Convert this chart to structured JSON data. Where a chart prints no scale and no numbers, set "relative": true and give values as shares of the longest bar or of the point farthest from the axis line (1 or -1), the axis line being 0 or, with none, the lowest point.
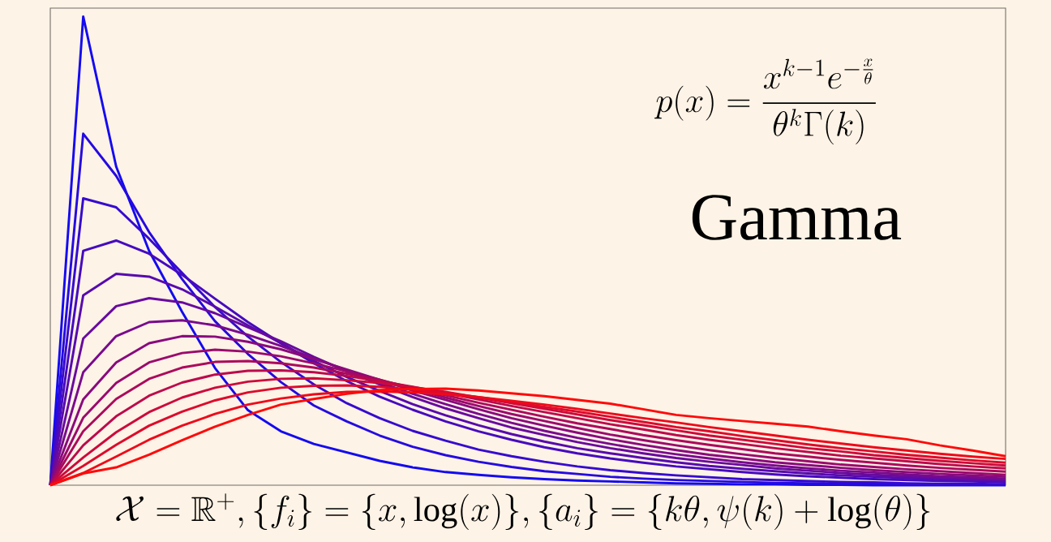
{
  "chart_data": {
    "type": "line",
    "title": "Gamma",
    "xlabel": "\\mathcal{X} = \\mathbb{R}^{+}, \\{f_i\\} = \\{x, \\log(x)\\}, \\{a_i\\} = \\{k\\theta, \\psi(k) + \\log(\\theta)\\}",
    "annotations": [
      "p(x) = \\frac{x^{k-1}e^{-\\frac{x}{\\theta}}}{\\theta^{k}\\Gamma(k)}"
    ],
    "relative": true,
    "marker": "none",
    "line_style": "solid",
    "categories": [
      null,
      null,
      null,
      null,
      null,
      null,
      null,
      null,
      null,
      null,
      null,
      null,
      null,
      null,
      null,
      null,
      null,
      null,
      null,
      null,
      null,
      null,
      null,
      null,
      null,
      null,
      null,
      null,
      null,
      null
    ],
    "series": [
      {
        "color": "#140af0",
        "values": [
          0,
          1,
          0.68,
          0.5,
          0.37,
          0.25,
          0.16,
          0.115,
          0.088,
          0.07,
          0.052,
          0.038,
          0.028,
          0.022,
          0.017,
          0.013,
          0.01,
          0.008,
          0.006,
          0.004,
          0.003,
          0.002,
          0.002,
          0.001,
          0.001,
          0,
          0,
          0,
          0,
          0
        ]
      },
      {
        "color": "#250ae0",
        "values": [
          0,
          0.75,
          0.66,
          0.54,
          0.44,
          0.35,
          0.28,
          0.22,
          0.17,
          0.136,
          0.106,
          0.082,
          0.064,
          0.05,
          0.039,
          0.03,
          0.024,
          0.018,
          0.014,
          0.011,
          0.009,
          0.007,
          0.005,
          0.004,
          0.003,
          0.003,
          0.002,
          0.002,
          0.001,
          0.001
        ]
      },
      {
        "color": "#360acf",
        "values": [
          0,
          0.612,
          0.593,
          0.526,
          0.453,
          0.38,
          0.317,
          0.263,
          0.215,
          0.175,
          0.143,
          0.116,
          0.095,
          0.076,
          0.062,
          0.05,
          0.04,
          0.032,
          0.026,
          0.021,
          0.017,
          0.013,
          0.011,
          0.009,
          0.007,
          0.006,
          0.004,
          0.003,
          0.003,
          0.002
        ]
      },
      {
        "color": "#460abf",
        "values": [
          0,
          0.5,
          0.522,
          0.494,
          0.449,
          0.398,
          0.348,
          0.303,
          0.26,
          0.222,
          0.189,
          0.161,
          0.136,
          0.115,
          0.097,
          0.081,
          0.068,
          0.057,
          0.048,
          0.04,
          0.034,
          0.028,
          0.023,
          0.019,
          0.016,
          0.013,
          0.011,
          0.009,
          0.008,
          0.006
        ]
      },
      {
        "color": "#570aae",
        "values": [
          0,
          0.405,
          0.451,
          0.445,
          0.418,
          0.381,
          0.341,
          0.303,
          0.265,
          0.231,
          0.201,
          0.173,
          0.149,
          0.128,
          0.109,
          0.093,
          0.079,
          0.068,
          0.058,
          0.049,
          0.041,
          0.035,
          0.03,
          0.025,
          0.021,
          0.018,
          0.015,
          0.013,
          0.011,
          0.009
        ]
      },
      {
        "color": "#680a9e",
        "values": [
          0,
          0.313,
          0.382,
          0.399,
          0.39,
          0.367,
          0.337,
          0.307,
          0.274,
          0.243,
          0.215,
          0.188,
          0.164,
          0.143,
          0.123,
          0.107,
          0.092,
          0.079,
          0.068,
          0.058,
          0.05,
          0.043,
          0.036,
          0.031,
          0.026,
          0.022,
          0.019,
          0.016,
          0.014,
          0.012
        ]
      },
      {
        "color": "#790a8d",
        "values": [
          0,
          0.241,
          0.318,
          0.348,
          0.352,
          0.341,
          0.321,
          0.297,
          0.271,
          0.245,
          0.219,
          0.195,
          0.173,
          0.152,
          0.133,
          0.116,
          0.101,
          0.088,
          0.076,
          0.066,
          0.057,
          0.049,
          0.042,
          0.036,
          0.031,
          0.027,
          0.023,
          0.019,
          0.017,
          0.014
        ]
      },
      {
        "color": "#890a7d",
        "values": [
          0,
          0.183,
          0.262,
          0.303,
          0.318,
          0.317,
          0.306,
          0.29,
          0.269,
          0.247,
          0.225,
          0.202,
          0.182,
          0.162,
          0.143,
          0.127,
          0.112,
          0.098,
          0.086,
          0.075,
          0.065,
          0.057,
          0.049,
          0.043,
          0.037,
          0.032,
          0.028,
          0.024,
          0.021,
          0.018
        ]
      },
      {
        "color": "#9a0a6d",
        "values": [
          0,
          0.144,
          0.218,
          0.262,
          0.282,
          0.289,
          0.285,
          0.275,
          0.26,
          0.243,
          0.225,
          0.206,
          0.187,
          0.169,
          0.152,
          0.137,
          0.122,
          0.108,
          0.096,
          0.085,
          0.075,
          0.066,
          0.058,
          0.051,
          0.044,
          0.039,
          0.034,
          0.03,
          0.026,
          0.022
        ]
      },
      {
        "color": "#ab0a5c",
        "values": [
          0,
          0.115,
          0.184,
          0.227,
          0.251,
          0.263,
          0.265,
          0.26,
          0.251,
          0.238,
          0.224,
          0.208,
          0.192,
          0.176,
          0.161,
          0.146,
          0.132,
          0.12,
          0.107,
          0.096,
          0.086,
          0.077,
          0.068,
          0.061,
          0.054,
          0.048,
          0.042,
          0.037,
          0.033,
          0.029
        ]
      },
      {
        "color": "#bc0a4c",
        "values": [
          0,
          0.085,
          0.147,
          0.191,
          0.219,
          0.236,
          0.244,
          0.245,
          0.241,
          0.233,
          0.222,
          0.21,
          0.197,
          0.183,
          0.169,
          0.156,
          0.143,
          0.13,
          0.119,
          0.107,
          0.097,
          0.088,
          0.079,
          0.071,
          0.063,
          0.057,
          0.051,
          0.045,
          0.04,
          0.036
        ]
      },
      {
        "color": "#cc0a3b",
        "values": [
          0,
          0.059,
          0.113,
          0.156,
          0.187,
          0.208,
          0.221,
          0.227,
          0.228,
          0.224,
          0.218,
          0.209,
          0.199,
          0.187,
          0.175,
          0.163,
          0.151,
          0.139,
          0.128,
          0.117,
          0.106,
          0.097,
          0.088,
          0.079,
          0.072,
          0.064,
          0.058,
          0.052,
          0.047,
          0.042
        ]
      },
      {
        "color": "#dd0a2b",
        "values": [
          0,
          0.041,
          0.086,
          0.127,
          0.157,
          0.181,
          0.198,
          0.208,
          0.212,
          0.213,
          0.21,
          0.204,
          0.197,
          0.188,
          0.178,
          0.167,
          0.157,
          0.146,
          0.135,
          0.124,
          0.115,
          0.105,
          0.096,
          0.087,
          0.079,
          0.072,
          0.065,
          0.059,
          0.053,
          0.048
        ]
      },
      {
        "color": "#ee0a1a",
        "values": [
          0,
          0.026,
          0.061,
          0.097,
          0.127,
          0.152,
          0.172,
          0.185,
          0.194,
          0.199,
          0.2,
          0.198,
          0.194,
          0.188,
          0.18,
          0.172,
          0.163,
          0.153,
          0.143,
          0.134,
          0.124,
          0.115,
          0.106,
          0.097,
          0.089,
          0.081,
          0.074,
          0.067,
          0.061,
          0.056
        ]
      },
      {
        "color": "#ff0a0a",
        "values": [
          0,
          0.025,
          0.038,
          0.065,
          0.096,
          0.125,
          0.15,
          0.172,
          0.184,
          0.195,
          0.203,
          0.205,
          0.206,
          0.202,
          0.196,
          0.19,
          0.182,
          0.174,
          0.162,
          0.15,
          0.143,
          0.137,
          0.131,
          0.125,
          0.115,
          0.106,
          0.098,
          0.085,
          0.074,
          0.062
        ]
      }
    ]
  }
}
